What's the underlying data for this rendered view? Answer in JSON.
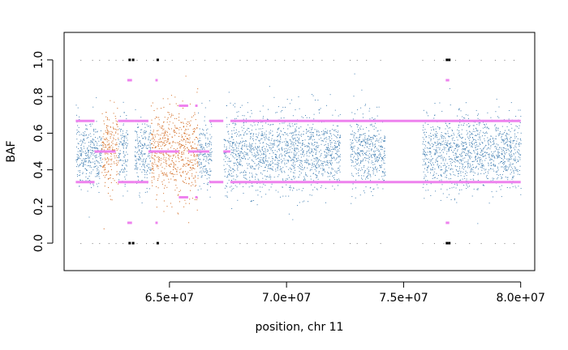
{
  "chart_data": {
    "type": "scatter",
    "title": "",
    "xlabel": "position, chr 11",
    "ylabel": "BAF",
    "xlim": [
      60500000,
      80600000
    ],
    "ylim": [
      -0.15,
      1.15
    ],
    "x_ticks": [
      65000000,
      70000000,
      75000000,
      80000000
    ],
    "x_tick_labels": [
      "6.5e+07",
      "7.0e+07",
      "7.5e+07",
      "8.0e+07"
    ],
    "y_ticks": [
      0.0,
      0.2,
      0.4,
      0.6,
      0.8,
      1.0
    ],
    "y_tick_labels": [
      "0.0",
      "0.2",
      "0.4",
      "0.6",
      "0.8",
      "1.0"
    ],
    "grid": false,
    "colors": {
      "normal": "#4682b4",
      "abnormal": "#d2691e",
      "segment": "#ee82ee",
      "marker": "#000000"
    },
    "point_regions": [
      {
        "start": 61000000,
        "end": 62100000,
        "class": "normal",
        "center": 0.5,
        "spread": 0.17
      },
      {
        "start": 62100000,
        "end": 62800000,
        "class": "abnormal",
        "center": 0.5,
        "spread": 0.2
      },
      {
        "start": 62800000,
        "end": 63200000,
        "class": "normal",
        "center": 0.5,
        "spread": 0.17
      },
      {
        "start": 63500000,
        "end": 63800000,
        "class": "normal",
        "center": 0.5,
        "spread": 0.17
      },
      {
        "start": 63800000,
        "end": 64200000,
        "class": "normal",
        "center": 0.5,
        "spread": 0.18
      },
      {
        "start": 64200000,
        "end": 65200000,
        "class": "abnormal",
        "center": 0.5,
        "spread": 0.22
      },
      {
        "start": 65200000,
        "end": 65600000,
        "class": "abnormal",
        "center": 0.5,
        "spread": 0.25
      },
      {
        "start": 65600000,
        "end": 66200000,
        "class": "abnormal",
        "center": 0.5,
        "spread": 0.25
      },
      {
        "start": 66200000,
        "end": 66800000,
        "class": "normal",
        "center": 0.5,
        "spread": 0.17
      },
      {
        "start": 67300000,
        "end": 68200000,
        "class": "normal",
        "center": 0.5,
        "spread": 0.2
      },
      {
        "start": 68200000,
        "end": 71600000,
        "class": "normal",
        "center": 0.5,
        "spread": 0.2
      },
      {
        "start": 71600000,
        "end": 72300000,
        "class": "normal",
        "center": 0.5,
        "spread": 0.17
      },
      {
        "start": 72700000,
        "end": 74000000,
        "class": "normal",
        "center": 0.5,
        "spread": 0.18
      },
      {
        "start": 74000000,
        "end": 74200000,
        "class": "normal",
        "center": 0.5,
        "spread": 0.17
      },
      {
        "start": 75800000,
        "end": 76200000,
        "class": "normal",
        "center": 0.5,
        "spread": 0.17
      },
      {
        "start": 76200000,
        "end": 77700000,
        "class": "normal",
        "center": 0.5,
        "spread": 0.2
      },
      {
        "start": 77700000,
        "end": 78800000,
        "class": "normal",
        "center": 0.5,
        "spread": 0.18
      },
      {
        "start": 78800000,
        "end": 79400000,
        "class": "normal",
        "center": 0.5,
        "spread": 0.17
      },
      {
        "start": 79400000,
        "end": 80000000,
        "class": "normal",
        "center": 0.5,
        "spread": 0.18
      }
    ],
    "segments": [
      {
        "start": 61000000,
        "end": 61800000,
        "y": [
          0.333,
          0.667
        ]
      },
      {
        "start": 61800000,
        "end": 62700000,
        "y": [
          0.5
        ]
      },
      {
        "start": 62800000,
        "end": 63500000,
        "y": [
          0.333,
          0.667
        ]
      },
      {
        "start": 63200000,
        "end": 63400000,
        "y": [
          0.111,
          0.889
        ]
      },
      {
        "start": 63500000,
        "end": 64100000,
        "y": [
          0.333,
          0.667
        ]
      },
      {
        "start": 64100000,
        "end": 65400000,
        "y": [
          0.5
        ]
      },
      {
        "start": 64400000,
        "end": 64500000,
        "y": [
          0.111,
          0.889
        ]
      },
      {
        "start": 65400000,
        "end": 65800000,
        "y": [
          0.25,
          0.75
        ]
      },
      {
        "start": 65800000,
        "end": 66700000,
        "y": [
          0.5
        ]
      },
      {
        "start": 66100000,
        "end": 66200000,
        "y": [
          0.25,
          0.75
        ]
      },
      {
        "start": 66700000,
        "end": 67300000,
        "y": [
          0.333,
          0.667
        ]
      },
      {
        "start": 67300000,
        "end": 67600000,
        "y": [
          0.5
        ]
      },
      {
        "start": 67600000,
        "end": 80000000,
        "y": [
          0.333,
          0.667
        ]
      },
      {
        "start": 76800000,
        "end": 76950000,
        "y": [
          0.111,
          0.889
        ]
      }
    ],
    "markers": [
      {
        "x": 63300000,
        "y": [
          0.0,
          1.0
        ]
      },
      {
        "x": 63450000,
        "y": [
          0.0,
          1.0
        ]
      },
      {
        "x": 64500000,
        "y": [
          0.0,
          1.0
        ]
      },
      {
        "x": 76850000,
        "y": [
          0.0,
          1.0
        ]
      },
      {
        "x": 76950000,
        "y": [
          0.0,
          1.0
        ]
      }
    ],
    "homozygous_ticks": [
      61200000,
      61700000,
      62000000,
      62400000,
      62700000,
      63000000,
      63600000,
      64000000,
      64300000,
      64800000,
      65100000,
      65700000,
      66000000,
      66500000,
      67000000,
      67400000,
      68000000,
      68300000,
      68700000,
      69100000,
      69500000,
      69900000,
      70300000,
      70700000,
      71100000,
      71500000,
      72000000,
      72700000,
      73000000,
      73400000,
      74000000,
      75800000,
      76300000,
      76700000,
      77200000,
      77800000,
      78300000,
      78900000,
      79300000,
      79700000
    ]
  }
}
